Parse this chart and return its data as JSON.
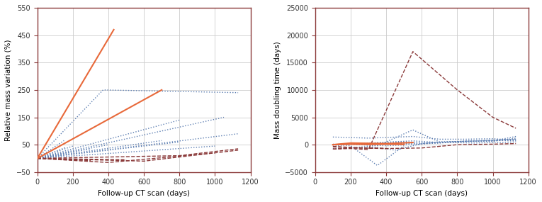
{
  "left_chart": {
    "xlabel": "Follow-up CT scan (days)",
    "ylabel": "Relative mass variation (%)",
    "xlim": [
      0,
      1200
    ],
    "ylim": [
      -50,
      550
    ],
    "yticks": [
      -50,
      50,
      150,
      250,
      350,
      450,
      550
    ],
    "xticks": [
      0,
      200,
      400,
      600,
      800,
      1000,
      1200
    ],
    "orange_lines": [
      {
        "x": [
          0,
          430
        ],
        "y": [
          0,
          470
        ]
      },
      {
        "x": [
          0,
          700
        ],
        "y": [
          0,
          250
        ]
      }
    ],
    "blue_dotted_lines": [
      {
        "x": [
          0,
          370,
          1130
        ],
        "y": [
          0,
          250,
          240
        ]
      },
      {
        "x": [
          0,
          1050
        ],
        "y": [
          0,
          150
        ]
      },
      {
        "x": [
          0,
          800
        ],
        "y": [
          0,
          140
        ]
      },
      {
        "x": [
          0,
          1130
        ],
        "y": [
          0,
          90
        ]
      },
      {
        "x": [
          0,
          700
        ],
        "y": [
          0,
          65
        ]
      },
      {
        "x": [
          0,
          800
        ],
        "y": [
          0,
          60
        ]
      },
      {
        "x": [
          0,
          150
        ],
        "y": [
          0,
          65
        ]
      },
      {
        "x": [
          0,
          1000
        ],
        "y": [
          0,
          45
        ]
      },
      {
        "x": [
          0,
          300
        ],
        "y": [
          0,
          35
        ]
      },
      {
        "x": [
          0,
          200
        ],
        "y": [
          0,
          45
        ]
      },
      {
        "x": [
          0,
          160
        ],
        "y": [
          0,
          40
        ]
      },
      {
        "x": [
          0,
          400
        ],
        "y": [
          0,
          50
        ]
      }
    ],
    "red_dashed_lines": [
      {
        "x": [
          0,
          800,
          1130
        ],
        "y": [
          0,
          10,
          35
        ]
      },
      {
        "x": [
          0,
          600,
          1130
        ],
        "y": [
          0,
          -10,
          30
        ]
      },
      {
        "x": [
          0,
          400,
          1000
        ],
        "y": [
          0,
          -15,
          20
        ]
      },
      {
        "x": [
          0,
          500
        ],
        "y": [
          0,
          -5
        ]
      },
      {
        "x": [
          0,
          300
        ],
        "y": [
          0,
          -8
        ]
      }
    ]
  },
  "right_chart": {
    "xlabel": "Follow-up CT scan (days)",
    "ylabel": "Mass doubling time (days)",
    "xlim": [
      0,
      1200
    ],
    "ylim": [
      -5000,
      25000
    ],
    "yticks": [
      -5000,
      0,
      5000,
      10000,
      15000,
      20000,
      25000
    ],
    "xticks": [
      0,
      200,
      400,
      600,
      800,
      1000,
      1200
    ],
    "orange_lines": [
      {
        "x": [
          100,
          200,
          400,
          550
        ],
        "y": [
          0,
          300,
          200,
          400
        ]
      },
      {
        "x": [
          100,
          200,
          300,
          400,
          500
        ],
        "y": [
          0,
          100,
          50,
          100,
          50
        ]
      }
    ],
    "blue_dotted_lines": [
      {
        "x": [
          100,
          300,
          550,
          700,
          850,
          1000,
          1130
        ],
        "y": [
          1400,
          1200,
          1500,
          1000,
          1000,
          1100,
          800
        ]
      },
      {
        "x": [
          100,
          250,
          450,
          700,
          850,
          1000,
          1130
        ],
        "y": [
          0,
          200,
          500,
          300,
          700,
          700,
          1500
        ]
      },
      {
        "x": [
          100,
          200,
          300,
          450,
          600,
          700,
          850,
          1000,
          1130
        ],
        "y": [
          -700,
          -600,
          -300,
          -1000,
          200,
          500,
          600,
          800,
          1000
        ]
      },
      {
        "x": [
          100,
          200,
          400,
          600,
          750,
          900,
          1130
        ],
        "y": [
          -300,
          100,
          -200,
          100,
          500,
          700,
          1000
        ]
      },
      {
        "x": [
          100,
          200,
          350,
          550,
          700,
          850,
          1000,
          1130
        ],
        "y": [
          0,
          100,
          -200,
          2700,
          500,
          600,
          600,
          1200
        ]
      },
      {
        "x": [
          100,
          250,
          550,
          700,
          850,
          1000,
          1130
        ],
        "y": [
          0,
          200,
          700,
          400,
          600,
          800,
          700
        ]
      },
      {
        "x": [
          100,
          200,
          350,
          500
        ],
        "y": [
          100,
          -200,
          -3800,
          -200
        ]
      },
      {
        "x": [
          100,
          200,
          400,
          600,
          750,
          900,
          1130
        ],
        "y": [
          0,
          100,
          200,
          200,
          400,
          300,
          500
        ]
      }
    ],
    "red_dashed_lines": [
      {
        "x": [
          100,
          200,
          300,
          550,
          800,
          1000,
          1130
        ],
        "y": [
          -800,
          -700,
          -900,
          17000,
          10000,
          5000,
          3000
        ]
      },
      {
        "x": [
          100,
          200,
          400,
          600,
          800,
          1000,
          1130
        ],
        "y": [
          -800,
          -600,
          -700,
          -600,
          0,
          100,
          200
        ]
      },
      {
        "x": [
          100,
          250,
          400
        ],
        "y": [
          -400,
          -600,
          -700
        ]
      },
      {
        "x": [
          100,
          200,
          400
        ],
        "y": [
          -300,
          -500,
          -700
        ]
      }
    ]
  },
  "colors": {
    "orange": "#E8693A",
    "blue_dotted": "#5B7DB1",
    "red_dashed": "#8B3A3A",
    "axis": "#8B3A3A",
    "grid": "#cccccc"
  }
}
